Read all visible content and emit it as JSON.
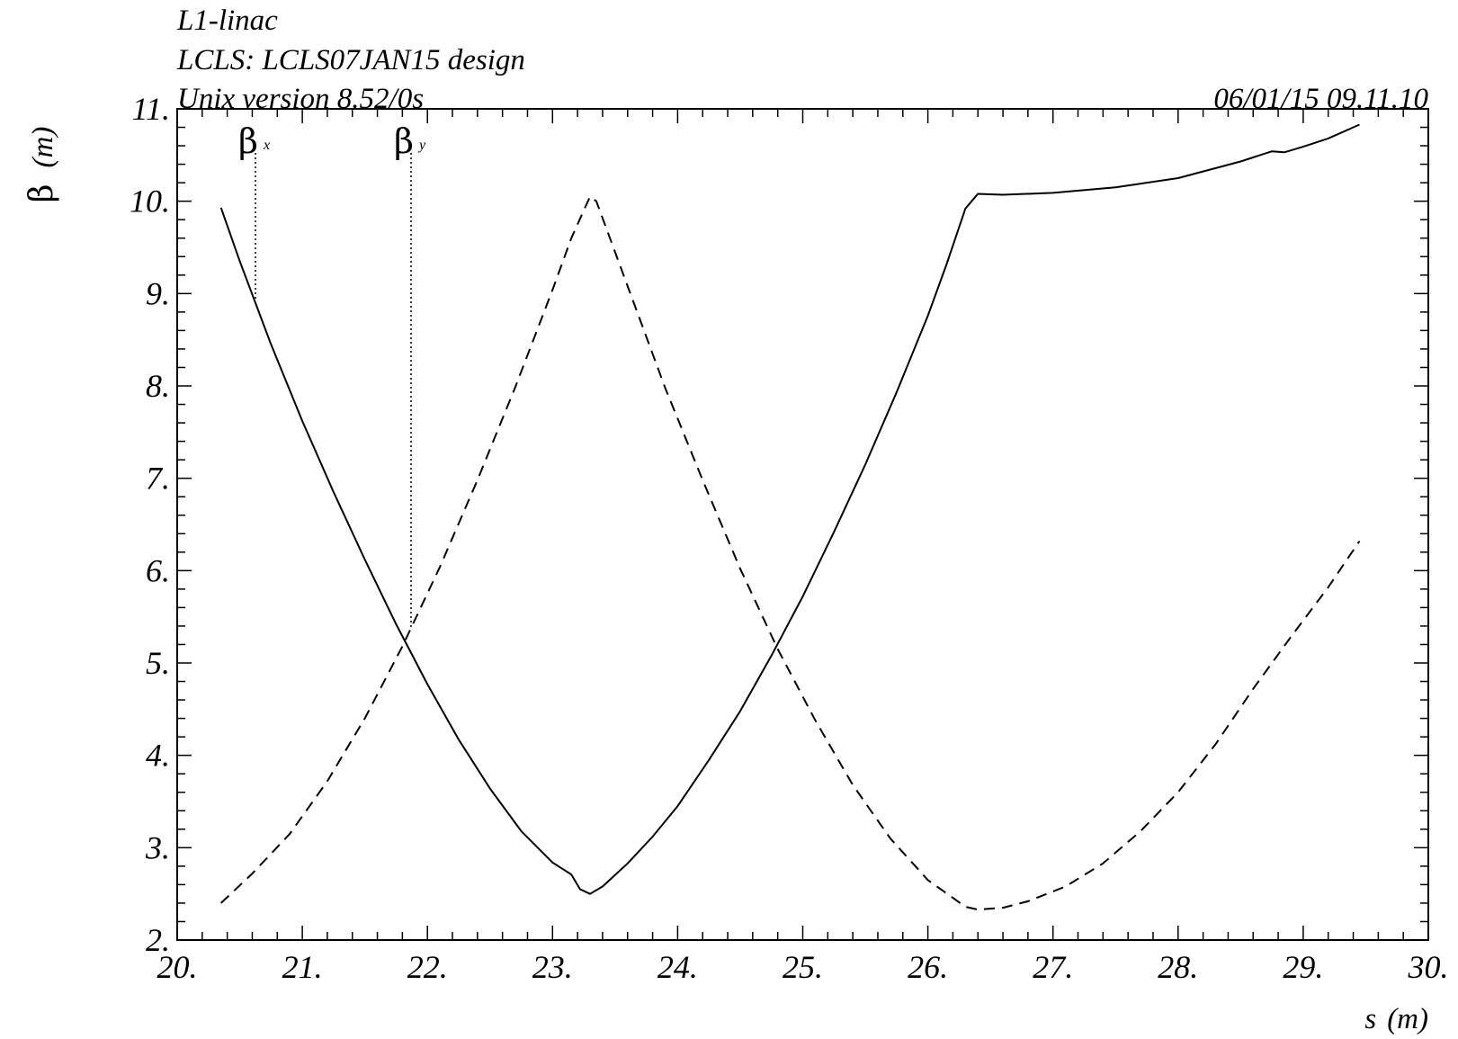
{
  "header": {
    "line1": "L1-linac",
    "line2": "LCLS: LCLS07JAN15 design",
    "line3": "Unix version 8.52/0s",
    "timestamp": "06/01/15  09.11.10"
  },
  "chart_data": {
    "type": "line",
    "xlabel_main": "s",
    "xlabel_unit": "(m)",
    "ylabel_main": "β",
    "ylabel_unit": "(m)",
    "xlim": [
      20,
      30
    ],
    "ylim": [
      2,
      11
    ],
    "xticks": [
      "20.",
      "21.",
      "22.",
      "23.",
      "24.",
      "25.",
      "26.",
      "27.",
      "28.",
      "29.",
      "30."
    ],
    "yticks": [
      "2.",
      "3.",
      "4.",
      "5.",
      "6.",
      "7.",
      "8.",
      "9.",
      "10.",
      "11."
    ],
    "grid": false,
    "legend": [
      {
        "symbol": "β",
        "sub": "x",
        "style": "solid"
      },
      {
        "symbol": "β",
        "sub": "y",
        "style": "dashed"
      }
    ],
    "series": [
      {
        "style": "solid",
        "x": [
          20.35,
          20.5,
          20.75,
          21.0,
          21.25,
          21.5,
          21.75,
          22.0,
          22.25,
          22.5,
          22.75,
          23.0,
          23.15,
          23.22,
          23.3,
          23.4,
          23.6,
          23.8,
          24.0,
          24.25,
          24.5,
          24.75,
          25.0,
          25.25,
          25.5,
          25.75,
          26.0,
          26.15,
          26.3,
          26.4,
          26.6,
          27.0,
          27.5,
          28.0,
          28.5,
          28.75,
          28.85,
          29.0,
          29.2,
          29.45
        ],
        "y": [
          9.93,
          9.35,
          8.45,
          7.62,
          6.85,
          6.12,
          5.42,
          4.77,
          4.17,
          3.64,
          3.18,
          2.84,
          2.71,
          2.55,
          2.5,
          2.58,
          2.83,
          3.12,
          3.45,
          3.95,
          4.48,
          5.08,
          5.72,
          6.42,
          7.15,
          7.93,
          8.76,
          9.32,
          9.92,
          10.08,
          10.07,
          10.09,
          10.15,
          10.25,
          10.43,
          10.54,
          10.53,
          10.59,
          10.68,
          10.83
        ]
      },
      {
        "style": "dashed",
        "x": [
          20.35,
          20.6,
          20.9,
          21.2,
          21.5,
          21.8,
          22.1,
          22.4,
          22.7,
          23.0,
          23.15,
          23.3,
          23.35,
          23.6,
          23.9,
          24.2,
          24.5,
          24.8,
          25.1,
          25.4,
          25.7,
          26.0,
          26.3,
          26.4,
          26.6,
          26.8,
          27.1,
          27.4,
          27.7,
          28.0,
          28.3,
          28.6,
          28.9,
          29.2,
          29.45
        ],
        "y": [
          2.4,
          2.72,
          3.15,
          3.72,
          4.4,
          5.18,
          6.04,
          6.98,
          7.98,
          9.04,
          9.6,
          10.05,
          10.0,
          9.08,
          7.98,
          6.98,
          6.02,
          5.15,
          4.38,
          3.68,
          3.1,
          2.65,
          2.36,
          2.33,
          2.35,
          2.42,
          2.58,
          2.83,
          3.18,
          3.6,
          4.12,
          4.72,
          5.28,
          5.82,
          6.32
        ]
      }
    ]
  }
}
